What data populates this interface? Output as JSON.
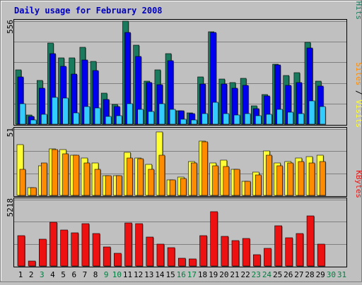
{
  "title": "Daily usage for February 2008",
  "colors": {
    "background": "#c0c0c0",
    "plot_bg": "#c0c0c0",
    "grid": "#808080",
    "title": "#0000c0",
    "hits": "#1a7a5e",
    "files": "#0000ee",
    "pages": "#33ccff",
    "visits": "#ffff33",
    "sites": "#ff8c00",
    "kbytes": "#ee1111",
    "weekday_label": "#000000",
    "weekend_label": "#008040"
  },
  "chart_data": [
    {
      "type": "bar",
      "name": "hits-files-pages",
      "scale_label": "556",
      "ylim": [
        0,
        556
      ],
      "legend": [
        {
          "key": "pages",
          "text": "Pages"
        },
        {
          "key": "sep1",
          "text": " / "
        },
        {
          "key": "files",
          "text": "Files"
        },
        {
          "key": "sep2",
          "text": " / "
        },
        {
          "key": "hits",
          "text": "Hits"
        }
      ],
      "categories": [
        "1",
        "2",
        "3",
        "4",
        "5",
        "6",
        "7",
        "8",
        "9",
        "10",
        "11",
        "12",
        "13",
        "14",
        "15",
        "16",
        "17",
        "18",
        "19",
        "20",
        "21",
        "22",
        "23",
        "24",
        "25",
        "26",
        "27",
        "28",
        "29",
        "30",
        "31"
      ],
      "series": [
        {
          "key": "hits",
          "name": "Hits",
          "values": [
            295,
            50,
            236,
            438,
            359,
            359,
            414,
            339,
            168,
            105,
            556,
            425,
            234,
            295,
            380,
            71,
            60,
            254,
            498,
            245,
            224,
            249,
            98,
            159,
            324,
            261,
            278,
            443,
            231,
            null,
            null
          ]
        },
        {
          "key": "files",
          "name": "Files",
          "values": [
            254,
            40,
            193,
            381,
            314,
            270,
            348,
            288,
            133,
            97,
            494,
            366,
            224,
            213,
            344,
            71,
            58,
            217,
            494,
            216,
            193,
            209,
            84,
            154,
            321,
            208,
            224,
            411,
            205,
            null,
            null
          ]
        },
        {
          "key": "pages",
          "name": "Pages",
          "values": [
            110,
            21,
            55,
            145,
            140,
            61,
            96,
            87,
            40,
            46,
            109,
            80,
            69,
            112,
            79,
            25,
            23,
            56,
            119,
            58,
            51,
            58,
            44,
            55,
            80,
            65,
            58,
            126,
            97,
            null,
            null
          ]
        }
      ]
    },
    {
      "type": "bar",
      "name": "visits-sites",
      "scale_label": "51",
      "ylim": [
        0,
        51
      ],
      "legend": [
        {
          "key": "sites",
          "text": "Sites"
        },
        {
          "key": "sep3",
          "text": " / "
        },
        {
          "key": "visits",
          "text": "Visits"
        }
      ],
      "categories": [
        "1",
        "2",
        "3",
        "4",
        "5",
        "6",
        "7",
        "8",
        "9",
        "10",
        "11",
        "12",
        "13",
        "14",
        "15",
        "16",
        "17",
        "18",
        "19",
        "20",
        "21",
        "22",
        "23",
        "24",
        "25",
        "26",
        "27",
        "28",
        "29",
        "30",
        "31"
      ],
      "series": [
        {
          "key": "visits",
          "name": "Visits",
          "values": [
            39,
            6,
            23,
            36,
            35,
            31,
            29,
            25,
            15,
            15,
            33,
            29,
            24,
            49,
            12,
            14,
            26,
            42,
            25,
            27,
            20,
            11,
            18,
            34,
            25,
            26,
            29,
            30,
            31,
            null,
            null
          ]
        },
        {
          "key": "sites",
          "name": "Sites",
          "values": [
            20,
            6,
            25,
            35,
            32,
            31,
            25,
            20,
            15,
            15,
            29,
            28,
            20,
            31,
            12,
            13,
            25,
            41,
            23,
            22,
            20,
            11,
            16,
            31,
            23,
            25,
            26,
            25,
            26,
            null,
            null
          ]
        }
      ]
    },
    {
      "type": "bar",
      "name": "kbytes",
      "scale_label": "5218",
      "ylim": [
        0,
        5218
      ],
      "legend": [
        {
          "key": "kbytes",
          "text": "KBytes"
        }
      ],
      "categories": [
        "1",
        "2",
        "3",
        "4",
        "5",
        "6",
        "7",
        "8",
        "9",
        "10",
        "11",
        "12",
        "13",
        "14",
        "15",
        "16",
        "17",
        "18",
        "19",
        "20",
        "21",
        "22",
        "23",
        "24",
        "25",
        "26",
        "27",
        "28",
        "29",
        "30",
        "31"
      ],
      "series": [
        {
          "key": "kbytes",
          "name": "KBytes",
          "values": [
            2400,
            400,
            2100,
            3420,
            2850,
            2590,
            3350,
            2570,
            1480,
            1020,
            3390,
            3340,
            2270,
            1700,
            1440,
            610,
            530,
            2360,
            4280,
            2320,
            1990,
            2160,
            890,
            1410,
            3150,
            2220,
            2530,
            3920,
            1740,
            null,
            null
          ]
        }
      ]
    }
  ],
  "days": [
    {
      "label": "1",
      "weekend": false
    },
    {
      "label": "2",
      "weekend": false
    },
    {
      "label": "3",
      "weekend": true
    },
    {
      "label": "4",
      "weekend": false
    },
    {
      "label": "5",
      "weekend": false
    },
    {
      "label": "6",
      "weekend": false
    },
    {
      "label": "7",
      "weekend": false
    },
    {
      "label": "8",
      "weekend": false
    },
    {
      "label": "9",
      "weekend": true
    },
    {
      "label": "10",
      "weekend": true
    },
    {
      "label": "11",
      "weekend": false
    },
    {
      "label": "12",
      "weekend": false
    },
    {
      "label": "13",
      "weekend": false
    },
    {
      "label": "14",
      "weekend": false
    },
    {
      "label": "15",
      "weekend": false
    },
    {
      "label": "16",
      "weekend": true
    },
    {
      "label": "17",
      "weekend": true
    },
    {
      "label": "18",
      "weekend": false
    },
    {
      "label": "19",
      "weekend": false
    },
    {
      "label": "20",
      "weekend": false
    },
    {
      "label": "21",
      "weekend": false
    },
    {
      "label": "22",
      "weekend": false
    },
    {
      "label": "23",
      "weekend": true
    },
    {
      "label": "24",
      "weekend": true
    },
    {
      "label": "25",
      "weekend": false
    },
    {
      "label": "26",
      "weekend": false
    },
    {
      "label": "27",
      "weekend": false
    },
    {
      "label": "28",
      "weekend": false
    },
    {
      "label": "29",
      "weekend": false
    },
    {
      "label": "30",
      "weekend": true
    },
    {
      "label": "31",
      "weekend": true
    }
  ]
}
